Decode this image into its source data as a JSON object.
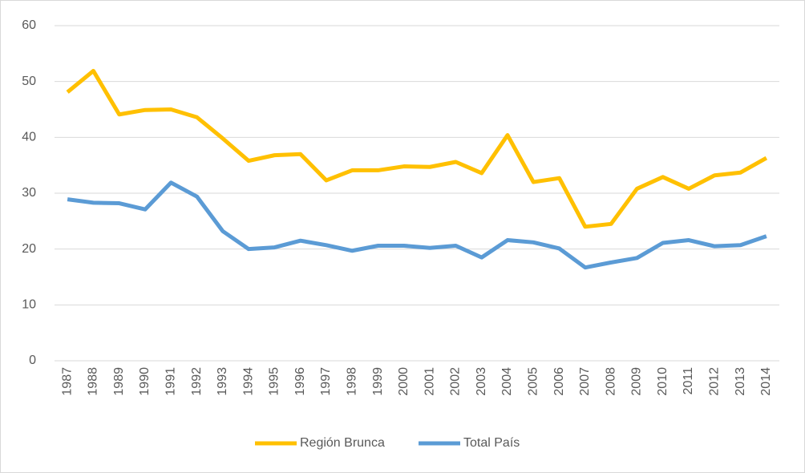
{
  "chart_data": {
    "type": "line",
    "categories": [
      "1987",
      "1988",
      "1989",
      "1990",
      "1991",
      "1992",
      "1993",
      "1994",
      "1995",
      "1996",
      "1997",
      "1998",
      "1999",
      "2000",
      "2001",
      "2002",
      "2003",
      "2004",
      "2005",
      "2006",
      "2007",
      "2008",
      "2009",
      "2010",
      "2011",
      "2012",
      "2013",
      "2014"
    ],
    "series": [
      {
        "name": "Región Brunca",
        "color": "#FFC000",
        "values": [
          48.1,
          51.9,
          44.1,
          44.9,
          45.0,
          43.6,
          39.8,
          35.8,
          36.8,
          37.0,
          32.3,
          34.1,
          34.1,
          34.8,
          34.7,
          35.6,
          33.6,
          40.4,
          32.0,
          32.7,
          24.0,
          24.5,
          30.8,
          32.9,
          30.8,
          33.2,
          33.7,
          36.3
        ]
      },
      {
        "name": "Total País",
        "color": "#5B9BD5",
        "values": [
          28.9,
          28.3,
          28.2,
          27.1,
          31.9,
          29.4,
          23.2,
          20.0,
          20.3,
          21.5,
          20.7,
          19.7,
          20.6,
          20.6,
          20.2,
          20.6,
          18.5,
          21.6,
          21.2,
          20.1,
          16.7,
          17.6,
          18.4,
          21.1,
          21.6,
          20.5,
          20.7,
          22.3
        ]
      }
    ],
    "ylim": [
      0,
      60
    ],
    "yticks": [
      0,
      10,
      20,
      30,
      40,
      50,
      60
    ],
    "grid": true,
    "legend": "bottom"
  }
}
